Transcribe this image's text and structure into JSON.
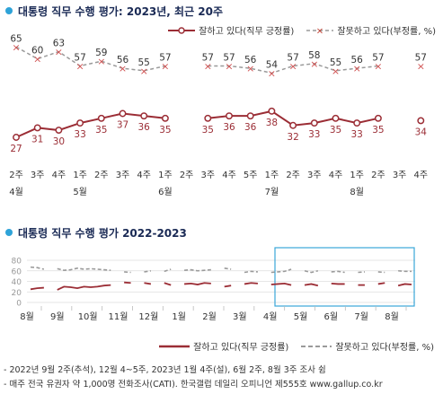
{
  "colors": {
    "approve": "#9b2d35",
    "disapprove": "#9a9a9a",
    "accent": "#2ea3d8",
    "highlight_box": "#3aa6d8"
  },
  "chart_data": [
    {
      "type": "line",
      "title": "대통령 직무 수행 평가: 2023년, 최근 20주",
      "categories": [
        "2주",
        "3주",
        "4주",
        "1주",
        "2주",
        "3주",
        "4주",
        "1주",
        "2주",
        "3주",
        "4주",
        "5주",
        "1주",
        "2주",
        "3주",
        "4주",
        "1주",
        "2주",
        "3주",
        "4주"
      ],
      "month_labels": [
        {
          "index": 0,
          "label": "4월"
        },
        {
          "index": 3,
          "label": "5월"
        },
        {
          "index": 7,
          "label": "6월"
        },
        {
          "index": 12,
          "label": "7월"
        },
        {
          "index": 16,
          "label": "8월"
        }
      ],
      "series": [
        {
          "name": "잘하고 있다(직무 긍정률)",
          "values": [
            27,
            31,
            30,
            33,
            35,
            37,
            36,
            35,
            null,
            35,
            36,
            36,
            38,
            32,
            33,
            35,
            33,
            35,
            null,
            34
          ]
        },
        {
          "name": "잘못하고 있다(부정률, %)",
          "values": [
            65,
            60,
            63,
            57,
            59,
            56,
            55,
            57,
            null,
            57,
            57,
            56,
            54,
            57,
            58,
            55,
            56,
            57,
            null,
            57
          ]
        }
      ],
      "ylim": [
        0,
        75
      ]
    },
    {
      "type": "line",
      "title": "대통령 직무 수행 평가 2022-2023",
      "x_tick_labels": [
        "8월",
        "9월",
        "10월",
        "11월",
        "12월",
        "1월",
        "2월",
        "3월",
        "4월",
        "5월",
        "6월",
        "7월",
        "8월"
      ],
      "y_ticks": [
        0,
        20,
        40,
        60,
        80
      ],
      "ylim": [
        0,
        80
      ],
      "series": [
        {
          "name": "잘하고 있다(직무 긍정률)",
          "values": [
            25,
            27,
            28,
            null,
            24,
            30,
            29,
            27,
            30,
            29,
            30,
            32,
            33,
            null,
            38,
            37,
            null,
            37,
            35,
            null,
            37,
            33,
            null,
            35,
            36,
            34,
            37,
            36,
            null,
            30,
            32,
            null,
            35,
            37,
            36,
            null,
            34,
            35,
            36,
            33,
            null,
            33,
            35,
            32,
            null,
            36,
            35,
            35,
            null,
            33,
            33,
            null,
            35,
            37,
            null,
            32,
            35,
            34
          ]
        },
        {
          "name": "잘못하고 있다(부정률, %)",
          "values": [
            67,
            66,
            63,
            null,
            64,
            61,
            62,
            65,
            63,
            64,
            63,
            62,
            61,
            null,
            58,
            57,
            null,
            58,
            60,
            null,
            59,
            63,
            null,
            61,
            62,
            60,
            61,
            62,
            null,
            65,
            63,
            null,
            57,
            59,
            58,
            null,
            57,
            58,
            59,
            63,
            null,
            60,
            57,
            60,
            null,
            58,
            59,
            57,
            null,
            57,
            58,
            null,
            58,
            57,
            null,
            60,
            59,
            59
          ]
        }
      ],
      "highlight_range": "4월 – 8월"
    }
  ],
  "legend": {
    "approve_label": "잘하고 있다(직무 긍정률)",
    "disapprove_label": "잘못하고 있다(부정률, %)",
    "approve_label2": "잘하고 있다(직무 긍정률)",
    "disapprove_label2": "잘못하고 있다(부정률, %)"
  },
  "footnotes": [
    "- 2022년 9월 2주(추석), 12월 4~5주, 2023년 1월 4주(설), 6월 2주, 8월 3주 조사 쉼",
    "- 매주 전국 유권자 약 1,000명 전화조사(CATI). 한국갤럽 데일리 오피니언 제555호 www.gallup.co.kr"
  ]
}
